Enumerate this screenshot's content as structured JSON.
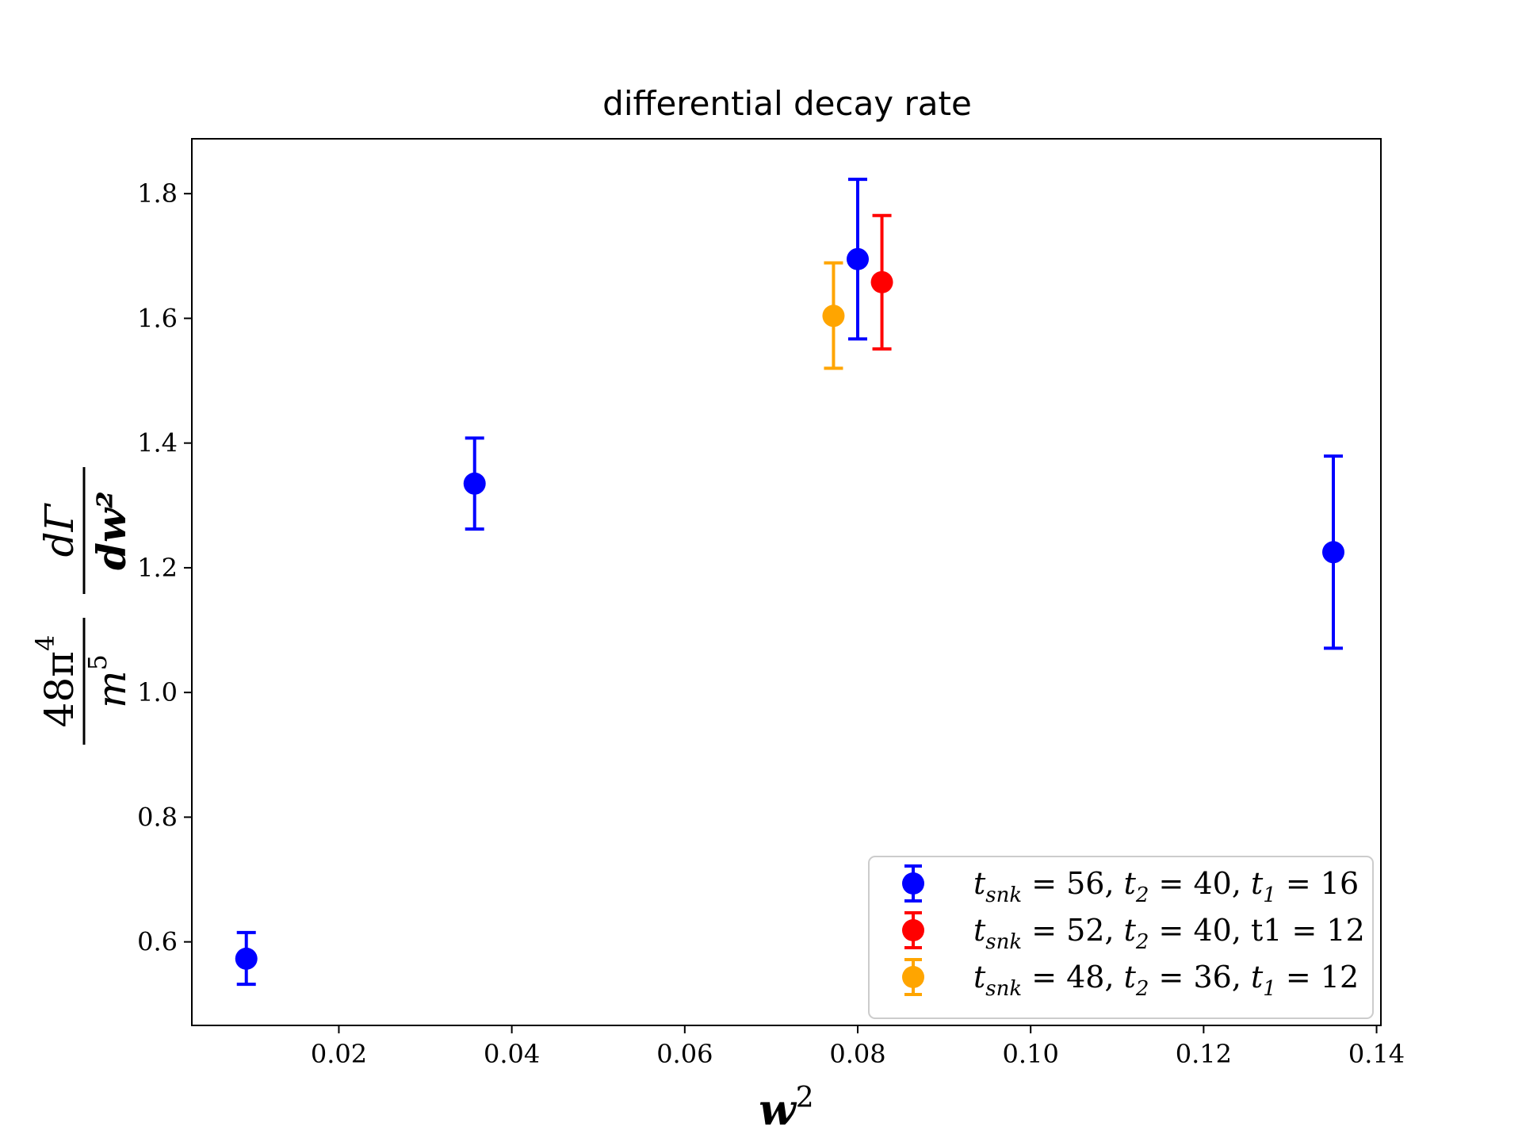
{
  "chart_data": {
    "type": "scatter",
    "title": "differential decay rate",
    "xlabel": "w²",
    "ylabel": {
      "numerator_coef": "48π",
      "numerator_exp": "4",
      "denominator_base": "m",
      "denominator_exp": "5",
      "frac_top": "dΓ",
      "frac_bottom": "dw²"
    },
    "xlim": [
      0.003,
      0.1405
    ],
    "ylim": [
      0.466,
      1.888
    ],
    "xticks": [
      0.02,
      0.04,
      0.06,
      0.08,
      0.1,
      0.12,
      0.14
    ],
    "xtick_labels": [
      "0.02",
      "0.04",
      "0.06",
      "0.08",
      "0.10",
      "0.12",
      "0.14"
    ],
    "yticks": [
      0.6,
      0.8,
      1.0,
      1.2,
      1.4,
      1.6,
      1.8
    ],
    "ytick_labels": [
      "0.6",
      "0.8",
      "1.0",
      "1.2",
      "1.4",
      "1.6",
      "1.8"
    ],
    "legend_position": "lower right",
    "series": [
      {
        "name": "t_snk = 56, t_2 = 40, t_1 = 16",
        "color": "#0000ff",
        "points": [
          {
            "x": 0.0093,
            "y": 0.573,
            "yerr_low": 0.532,
            "yerr_high": 0.615
          },
          {
            "x": 0.0357,
            "y": 1.335,
            "yerr_low": 1.262,
            "yerr_high": 1.408
          },
          {
            "x": 0.08,
            "y": 1.695,
            "yerr_low": 1.567,
            "yerr_high": 1.823
          },
          {
            "x": 0.135,
            "y": 1.225,
            "yerr_low": 1.071,
            "yerr_high": 1.379
          }
        ]
      },
      {
        "name": "t_snk = 52, t_2 = 40, t1 = 12",
        "color": "#ff0000",
        "points": [
          {
            "x": 0.0828,
            "y": 1.658,
            "yerr_low": 1.551,
            "yerr_high": 1.765
          }
        ]
      },
      {
        "name": "t_snk = 48, t_2 = 36, t_1 = 12",
        "color": "#ffa500",
        "points": [
          {
            "x": 0.0772,
            "y": 1.604,
            "yerr_low": 1.52,
            "yerr_high": 1.689
          }
        ]
      }
    ],
    "legend_entries": [
      {
        "base": "t",
        "sub": "snk",
        "rest": " = 56, ",
        "base2": "t",
        "sub2": "2",
        "rest2": " = 40, ",
        "base3": "t",
        "sub3": "1",
        "rest3": " = 16"
      },
      {
        "base": "t",
        "sub": "snk",
        "rest": " = 52, ",
        "base2": "t",
        "sub2": "2",
        "rest2": " = 40, ",
        "base3": "t1",
        "sub3": "",
        "rest3": " = 12"
      },
      {
        "base": "t",
        "sub": "snk",
        "rest": " = 48, ",
        "base2": "t",
        "sub2": "2",
        "rest2": " = 36, ",
        "base3": "t",
        "sub3": "1",
        "rest3": " = 12"
      }
    ]
  }
}
